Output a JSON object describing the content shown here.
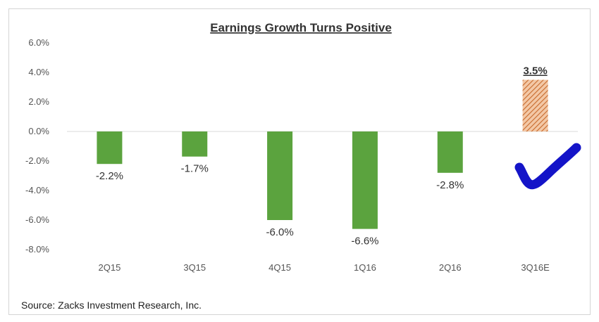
{
  "chart_data": {
    "type": "bar",
    "title": "Earnings Growth Turns Positive",
    "categories": [
      "2Q15",
      "3Q15",
      "4Q15",
      "1Q16",
      "2Q16",
      "3Q16E"
    ],
    "values": [
      -2.2,
      -1.7,
      -6.0,
      -6.6,
      -2.8,
      3.5
    ],
    "data_labels": [
      "-2.2%",
      "-1.7%",
      "-6.0%",
      "-6.6%",
      "-2.8%",
      "3.5%"
    ],
    "yticks": [
      "6.0%",
      "4.0%",
      "2.0%",
      "0.0%",
      "-2.0%",
      "-4.0%",
      "-6.0%",
      "-8.0%"
    ],
    "ytick_values": [
      6,
      4,
      2,
      0,
      -2,
      -4,
      -6,
      -8
    ],
    "ylim": [
      -8,
      6
    ],
    "grid": false,
    "colors": {
      "actual": "#5ba33e",
      "estimate": "#e8a06a",
      "estimate_hatch": "#c86a2c",
      "checkmark": "#1414c8"
    },
    "highlight": {
      "category": "3Q16E",
      "style": "hatched",
      "annotation": "checkmark-icon"
    }
  },
  "source": "Source: Zacks Investment Research, Inc."
}
